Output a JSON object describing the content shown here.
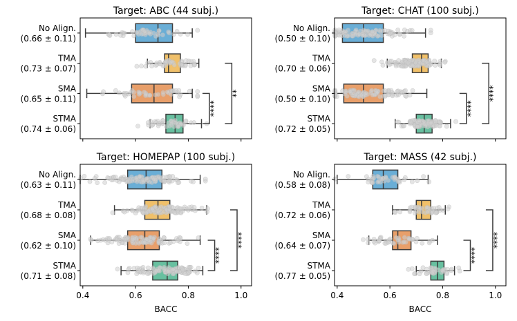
{
  "chart_data": [
    {
      "type": "boxplot",
      "title": "Target: ABC (44 subj.)",
      "xlabel": "BACC",
      "xlim": [
        0.39,
        1.04
      ],
      "xticks": [
        "0.4",
        "0.6",
        "0.8",
        "1.0"
      ],
      "show_xtick_labels": false,
      "n_points": 44,
      "categories": [
        {
          "label": "No Align.",
          "stat": "(0.66 ± 0.11)",
          "color": "#6aaed6",
          "whisker_low": 0.41,
          "q1": 0.6,
          "median": 0.685,
          "q3": 0.74,
          "whisker_high": 0.815,
          "mean": 0.66,
          "sd": 0.11
        },
        {
          "label": "TMA",
          "stat": "(0.73 ± 0.07)",
          "color": "#f0c06a",
          "whisker_low": 0.645,
          "q1": 0.71,
          "median": 0.725,
          "q3": 0.77,
          "whisker_high": 0.84,
          "mean": 0.73,
          "sd": 0.07
        },
        {
          "label": "SMA",
          "stat": "(0.65 ± 0.11)",
          "color": "#e89f6a",
          "whisker_low": 0.415,
          "q1": 0.585,
          "median": 0.67,
          "q3": 0.74,
          "whisker_high": 0.815,
          "mean": 0.65,
          "sd": 0.11
        },
        {
          "label": "STMA",
          "stat": "(0.74 ± 0.06)",
          "color": "#68c0a0",
          "whisker_low": 0.655,
          "q1": 0.715,
          "median": 0.75,
          "q3": 0.78,
          "whisker_high": 0.85,
          "mean": 0.74,
          "sd": 0.06
        }
      ],
      "annotations": [
        {
          "from": 2,
          "to": 3,
          "text": "****",
          "x": 0.88
        },
        {
          "from": 1,
          "to": 3,
          "text": "**",
          "x": 0.965
        }
      ]
    },
    {
      "type": "boxplot",
      "title": "Target: CHAT (100 subj.)",
      "xlabel": "BACC",
      "xlim": [
        0.39,
        1.04
      ],
      "xticks": [
        "0.4",
        "0.6",
        "0.8",
        "1.0"
      ],
      "show_xtick_labels": false,
      "n_points": 100,
      "categories": [
        {
          "label": "No Align.",
          "stat": "(0.50 ± 0.10)",
          "color": "#6aaed6",
          "whisker_low": 0.39,
          "q1": 0.42,
          "median": 0.5,
          "q3": 0.575,
          "whisker_high": 0.735,
          "mean": 0.5,
          "sd": 0.1
        },
        {
          "label": "TMA",
          "stat": "(0.70 ± 0.06)",
          "color": "#f0c06a",
          "whisker_low": 0.59,
          "q1": 0.685,
          "median": 0.72,
          "q3": 0.745,
          "whisker_high": 0.795,
          "mean": 0.7,
          "sd": 0.06
        },
        {
          "label": "SMA",
          "stat": "(0.50 ± 0.10)",
          "color": "#e89f6a",
          "whisker_low": 0.39,
          "q1": 0.425,
          "median": 0.5,
          "q3": 0.575,
          "whisker_high": 0.74,
          "mean": 0.5,
          "sd": 0.1
        },
        {
          "label": "STMA",
          "stat": "(0.72 ± 0.05)",
          "color": "#68c0a0",
          "whisker_low": 0.62,
          "q1": 0.7,
          "median": 0.73,
          "q3": 0.76,
          "whisker_high": 0.83,
          "mean": 0.72,
          "sd": 0.05
        }
      ],
      "annotations": [
        {
          "from": 2,
          "to": 3,
          "text": "****",
          "x": 0.89
        },
        {
          "from": 1,
          "to": 3,
          "text": "****",
          "x": 0.975
        }
      ]
    },
    {
      "type": "boxplot",
      "title": "Target: HOMEPAP (100 subj.)",
      "xlabel": "BACC",
      "xlim": [
        0.39,
        1.04
      ],
      "xticks": [
        "0.4",
        "0.6",
        "0.8",
        "1.0"
      ],
      "show_xtick_labels": true,
      "n_points": 100,
      "categories": [
        {
          "label": "No Align.",
          "stat": "(0.63 ± 0.11)",
          "color": "#6aaed6",
          "whisker_low": 0.39,
          "q1": 0.57,
          "median": 0.64,
          "q3": 0.7,
          "whisker_high": 0.845,
          "mean": 0.63,
          "sd": 0.11
        },
        {
          "label": "TMA",
          "stat": "(0.68 ± 0.08)",
          "color": "#f0c06a",
          "whisker_low": 0.52,
          "q1": 0.635,
          "median": 0.685,
          "q3": 0.73,
          "whisker_high": 0.87,
          "mean": 0.68,
          "sd": 0.08
        },
        {
          "label": "SMA",
          "stat": "(0.62 ± 0.10)",
          "color": "#e89f6a",
          "whisker_low": 0.43,
          "q1": 0.57,
          "median": 0.635,
          "q3": 0.69,
          "whisker_high": 0.845,
          "mean": 0.62,
          "sd": 0.1
        },
        {
          "label": "STMA",
          "stat": "(0.71 ± 0.08)",
          "color": "#68c0a0",
          "whisker_low": 0.545,
          "q1": 0.665,
          "median": 0.72,
          "q3": 0.76,
          "whisker_high": 0.855,
          "mean": 0.71,
          "sd": 0.08
        }
      ],
      "annotations": [
        {
          "from": 2,
          "to": 3,
          "text": "****",
          "x": 0.9
        },
        {
          "from": 1,
          "to": 3,
          "text": "****",
          "x": 0.985
        }
      ]
    },
    {
      "type": "boxplot",
      "title": "Target: MASS (42 subj.)",
      "xlabel": "BACC",
      "xlim": [
        0.39,
        1.04
      ],
      "xticks": [
        "0.4",
        "0.6",
        "0.8",
        "1.0"
      ],
      "show_xtick_labels": true,
      "n_points": 42,
      "categories": [
        {
          "label": "No Align.",
          "stat": "(0.58 ± 0.08)",
          "color": "#6aaed6",
          "whisker_low": 0.4,
          "q1": 0.535,
          "median": 0.575,
          "q3": 0.63,
          "whisker_high": 0.745,
          "mean": 0.58,
          "sd": 0.08
        },
        {
          "label": "TMA",
          "stat": "(0.72 ± 0.06)",
          "color": "#f0c06a",
          "whisker_low": 0.61,
          "q1": 0.7,
          "median": 0.72,
          "q3": 0.755,
          "whisker_high": 0.81,
          "mean": 0.72,
          "sd": 0.06
        },
        {
          "label": "SMA",
          "stat": "(0.64 ± 0.07)",
          "color": "#e89f6a",
          "whisker_low": 0.52,
          "q1": 0.61,
          "median": 0.63,
          "q3": 0.68,
          "whisker_high": 0.78,
          "mean": 0.64,
          "sd": 0.07
        },
        {
          "label": "STMA",
          "stat": "(0.77 ± 0.05)",
          "color": "#68c0a0",
          "whisker_low": 0.7,
          "q1": 0.755,
          "median": 0.78,
          "q3": 0.805,
          "whisker_high": 0.845,
          "mean": 0.77,
          "sd": 0.05
        }
      ],
      "annotations": [
        {
          "from": 2,
          "to": 3,
          "text": "****",
          "x": 0.905
        },
        {
          "from": 1,
          "to": 3,
          "text": "****",
          "x": 0.99
        }
      ]
    }
  ]
}
